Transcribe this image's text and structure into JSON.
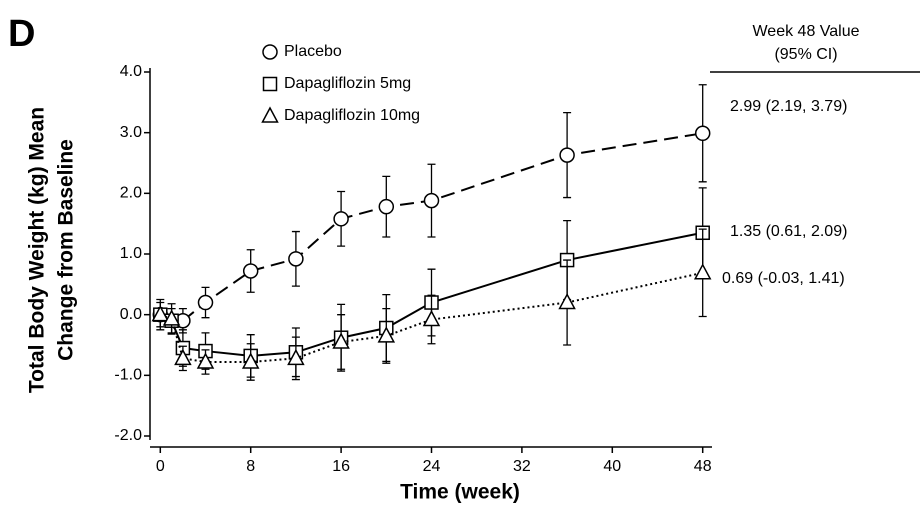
{
  "chart_data": {
    "type": "line",
    "panel_label": "D",
    "y_axis_title": [
      "Total Body Weight (kg) Mean",
      "Change from Baseline"
    ],
    "x_axis_title": "Time (week)",
    "table_header": [
      "Week 48 Value",
      "(95% CI)"
    ],
    "x": [
      0,
      1,
      2,
      4,
      8,
      12,
      16,
      20,
      24,
      36,
      48
    ],
    "xlim": [
      -1,
      49
    ],
    "xticks": [
      0,
      8,
      16,
      24,
      32,
      40,
      48
    ],
    "ylim": [
      -2,
      4
    ],
    "yticks": [
      {
        "value": -2,
        "label": "-2.0"
      },
      {
        "value": -1,
        "label": "-1.0"
      },
      {
        "value": 0,
        "label": "0.0"
      },
      {
        "value": 1,
        "label": "1.0"
      },
      {
        "value": 2,
        "label": "2.0"
      },
      {
        "value": 3,
        "label": "3.0"
      },
      {
        "value": 4,
        "label": "4.0"
      }
    ],
    "grid": false,
    "series": [
      {
        "name": "Placebo",
        "color": "#000000",
        "marker": "circle",
        "dash": "dashed",
        "values": [
          0,
          null,
          -0.1,
          0.2,
          0.72,
          0.92,
          1.58,
          1.78,
          1.88,
          2.63,
          2.99
        ],
        "errors": [
          0,
          null,
          0.2,
          0.25,
          0.35,
          0.45,
          0.45,
          0.5,
          0.6,
          0.7,
          0.8
        ],
        "annotation": "2.99 (2.19, 3.79)"
      },
      {
        "name": "Dapagliflozin 5mg",
        "color": "#000000",
        "marker": "square",
        "dash": "solid",
        "values": [
          0,
          -0.1,
          -0.55,
          -0.6,
          -0.68,
          -0.62,
          -0.38,
          -0.22,
          0.2,
          0.9,
          1.35
        ],
        "errors": [
          0.2,
          0.2,
          0.3,
          0.3,
          0.35,
          0.4,
          0.55,
          0.55,
          0.55,
          0.65,
          0.74
        ],
        "annotation": "1.35 (0.61, 2.09)"
      },
      {
        "name": "Dapagliflozin 10mg",
        "color": "#000000",
        "marker": "triangle",
        "dash": "dotted",
        "values": [
          0,
          -0.07,
          -0.72,
          -0.78,
          -0.78,
          -0.72,
          -0.45,
          -0.35,
          -0.08,
          0.2,
          0.69
        ],
        "errors": [
          0.25,
          0.25,
          0.2,
          0.2,
          0.3,
          0.35,
          0.45,
          0.45,
          0.4,
          0.7,
          0.72
        ],
        "annotation": "0.69 (-0.03, 1.41)"
      }
    ]
  }
}
